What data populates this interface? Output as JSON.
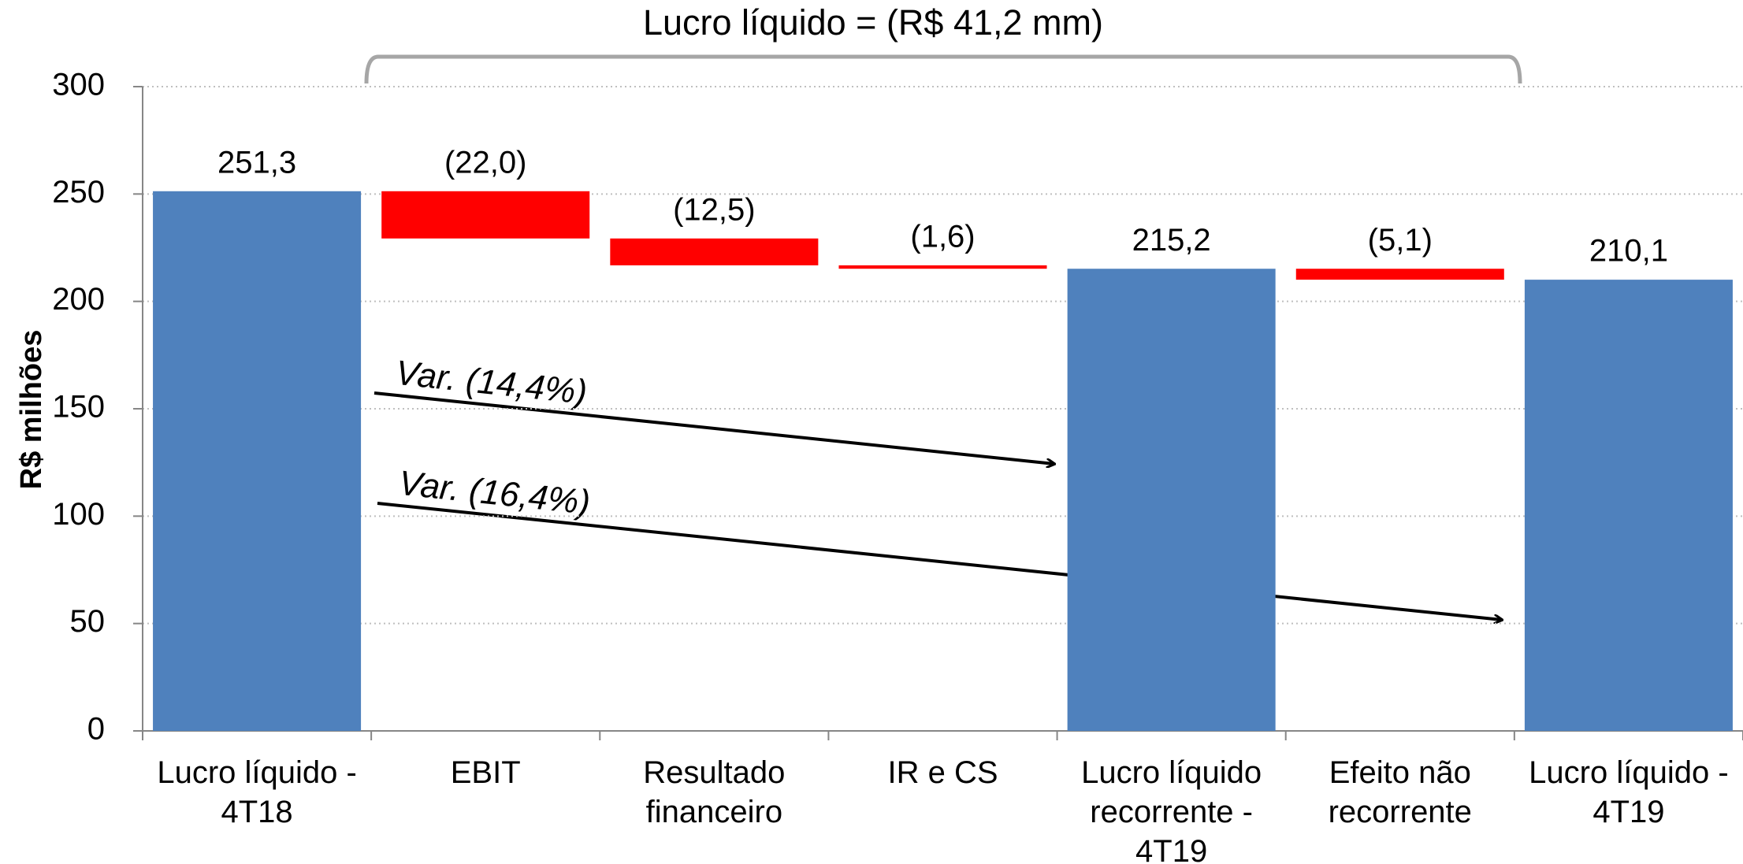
{
  "chart_data": {
    "type": "waterfall",
    "title": "Lucro líquido = (R$ 41,2 mm)",
    "y_label": "R$ milhões",
    "categories": [
      "Lucro líquido - 4T18",
      "EBIT",
      "Resultado financeiro",
      "IR e CS",
      "Lucro líquido recorrente - 4T19",
      "Efeito não recorrente",
      "Lucro líquido - 4T19"
    ],
    "values": [
      251.3,
      -22.0,
      -12.5,
      -1.6,
      215.2,
      -5.1,
      210.1
    ],
    "value_labels": [
      "251,3",
      "(22,0)",
      "(12,5)",
      "(1,6)",
      "215,2",
      "(5,1)",
      "210,1"
    ],
    "measure": [
      "absolute",
      "relative",
      "relative",
      "relative",
      "absolute",
      "relative",
      "absolute"
    ],
    "total_color": "#4f81bd",
    "delta_color": "#ff0000",
    "annotations": [
      "Var. (14,4%)",
      "Var. (16,4%)"
    ],
    "ylim": [
      0,
      300
    ],
    "yticks": [
      0,
      50,
      100,
      150,
      200,
      250,
      300
    ],
    "grid": true
  }
}
